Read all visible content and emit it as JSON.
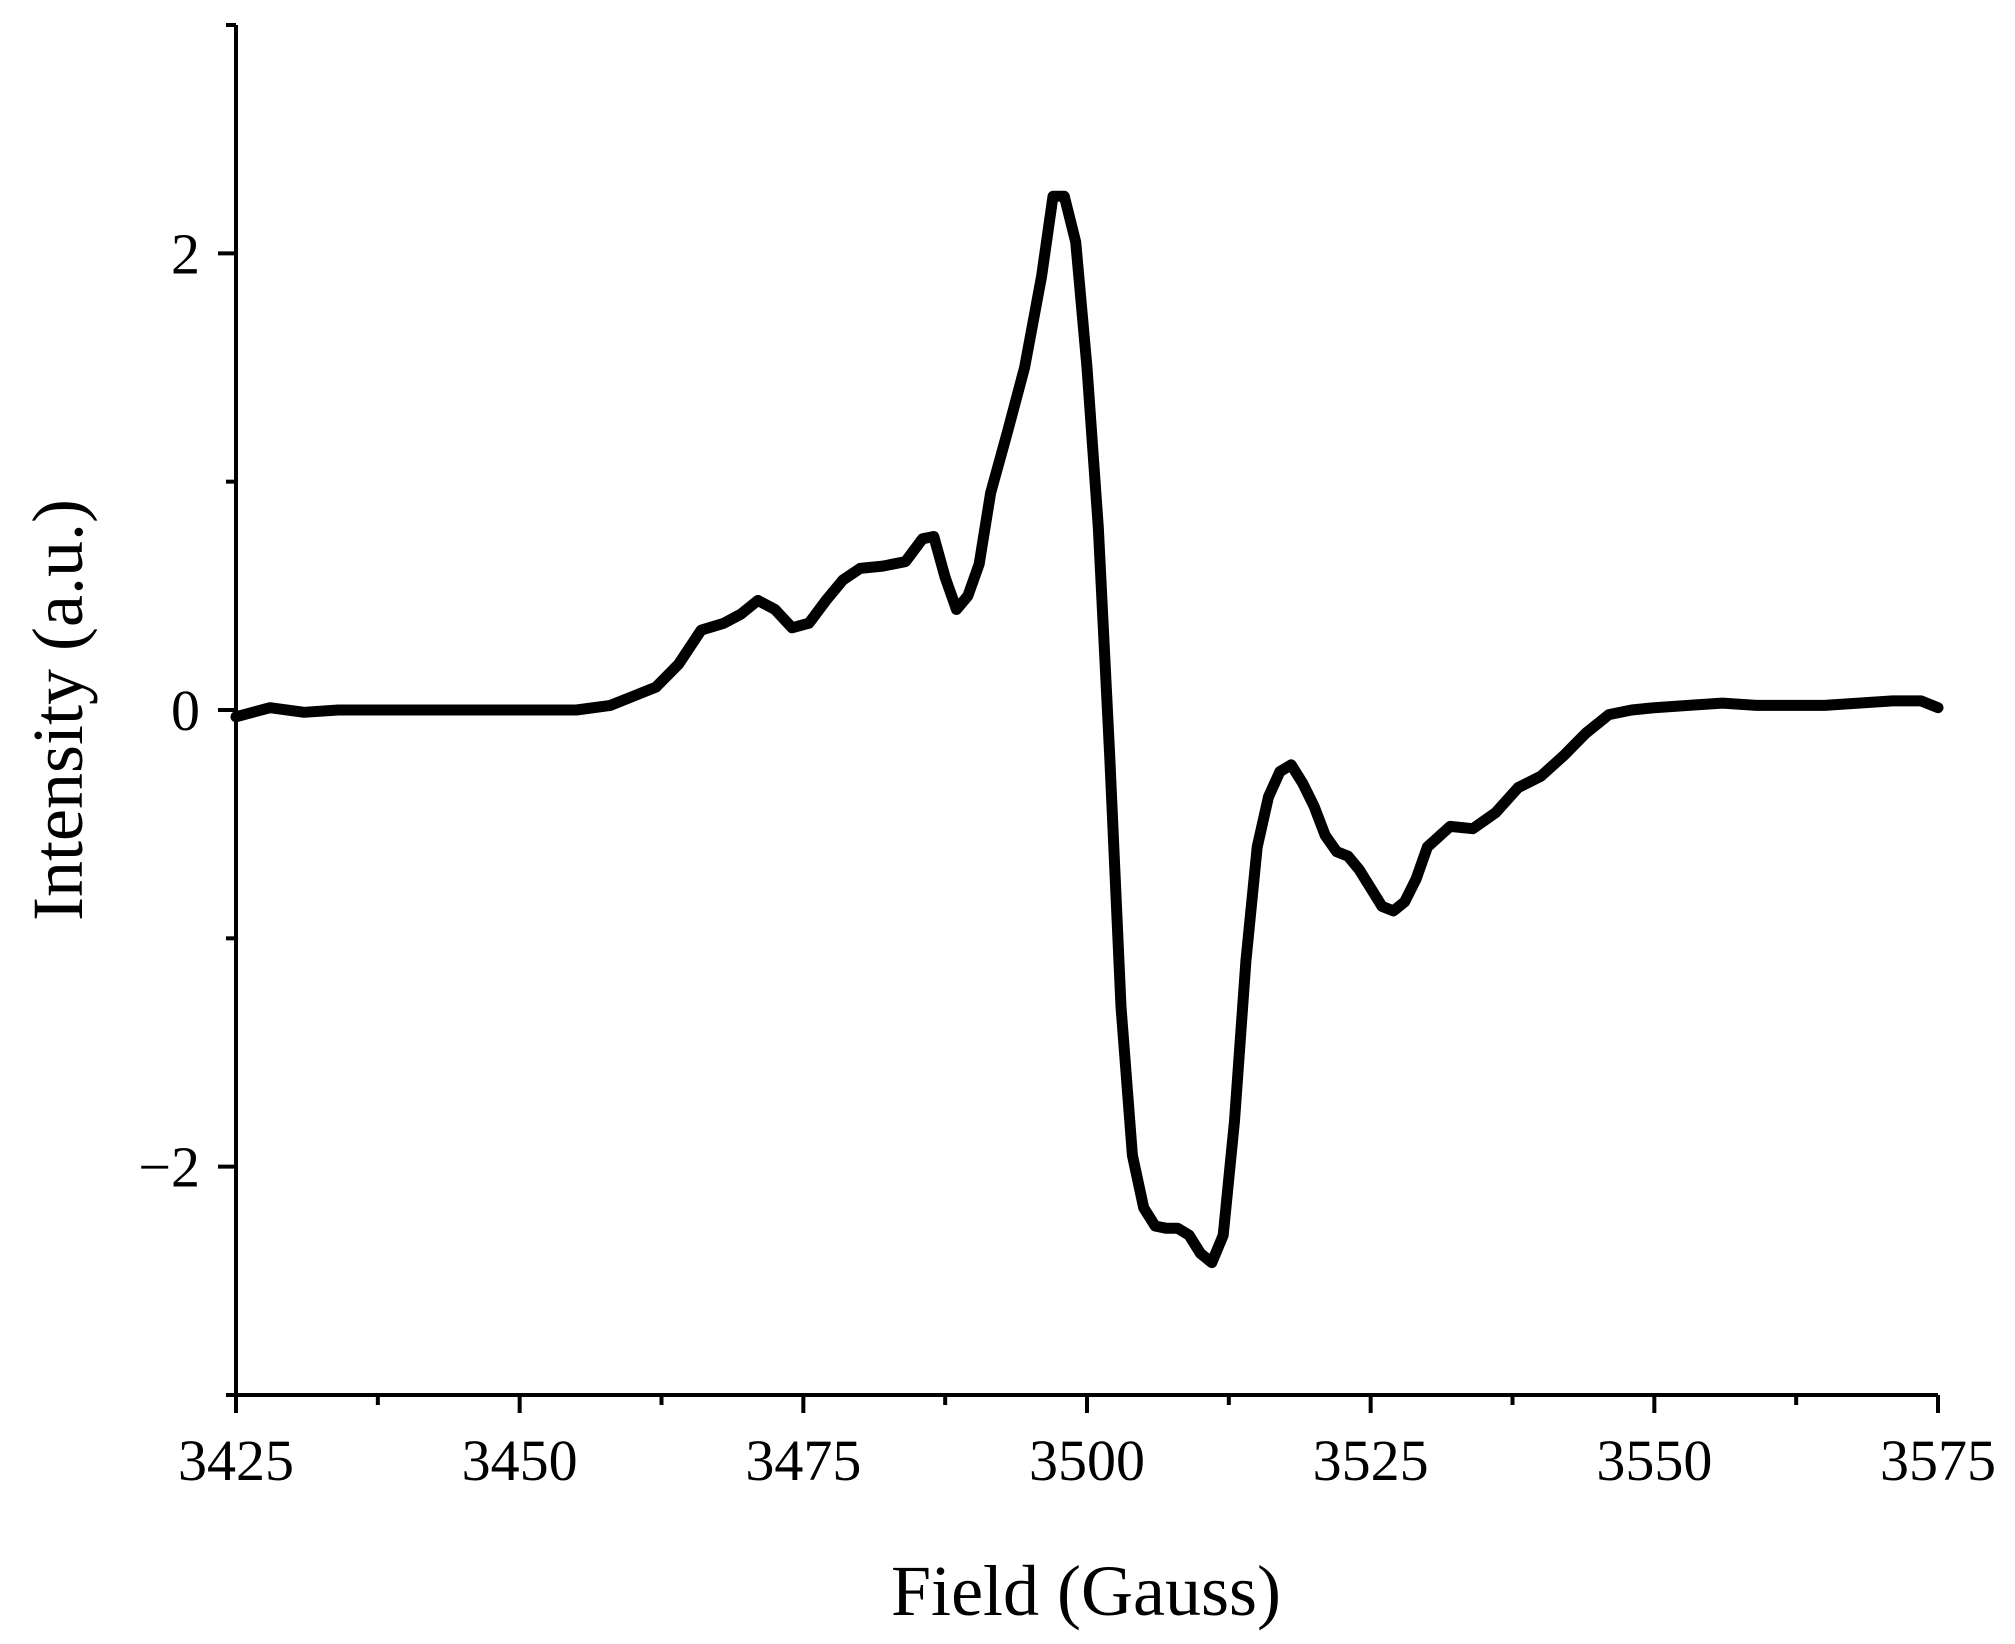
{
  "chart_data": {
    "type": "line",
    "xlabel": "Field (Gauss)",
    "ylabel": "Intensity (a.u.)",
    "xlim": [
      3425,
      3575
    ],
    "ylim": [
      -3,
      3
    ],
    "xticks": [
      3425,
      3450,
      3475,
      3500,
      3525,
      3550,
      3575
    ],
    "xticks_minor": [
      3437.5,
      3462.5,
      3487.5,
      3512.5,
      3537.5,
      3562.5
    ],
    "yticks": [
      -2,
      0,
      2
    ],
    "yticks_minor": [
      -3,
      -1,
      1,
      3
    ],
    "ytick_labels": [
      "−2",
      "0",
      "2"
    ],
    "grid": false,
    "line_color": "#000000",
    "series": [
      {
        "x": [
          3425,
          3428,
          3431,
          3434,
          3437,
          3440,
          3443,
          3446,
          3449,
          3452,
          3455,
          3458,
          3460,
          3462,
          3464,
          3466,
          3468,
          3469.5,
          3471,
          3472.5,
          3474,
          3475.5,
          3477,
          3478.5,
          3480,
          3482,
          3484,
          3485.5,
          3486.5,
          3487.5,
          3488.5,
          3489.5,
          3490.5,
          3491.5,
          3493,
          3494.5,
          3496,
          3497,
          3498,
          3499,
          3500,
          3501,
          3502,
          3503,
          3504,
          3505,
          3506,
          3507,
          3508,
          3509,
          3510,
          3511,
          3512,
          3513,
          3514,
          3515,
          3516,
          3517,
          3518,
          3519,
          3520,
          3521,
          3522,
          3523,
          3524,
          3525,
          3526,
          3527,
          3528,
          3529,
          3530,
          3532,
          3534,
          3536,
          3538,
          3540,
          3542,
          3544,
          3546,
          3548,
          3550,
          3553,
          3556,
          3559,
          3562,
          3565,
          3568,
          3571,
          3573.5,
          3575
        ],
        "y": [
          -0.03,
          0.01,
          -0.01,
          0.0,
          0.0,
          0.0,
          0.0,
          0.0,
          0.0,
          0.0,
          0.0,
          0.02,
          0.06,
          0.1,
          0.2,
          0.35,
          0.38,
          0.42,
          0.48,
          0.44,
          0.36,
          0.38,
          0.48,
          0.57,
          0.62,
          0.63,
          0.65,
          0.75,
          0.76,
          0.58,
          0.44,
          0.5,
          0.64,
          0.95,
          1.22,
          1.5,
          1.9,
          2.25,
          2.25,
          2.05,
          1.5,
          0.8,
          -0.2,
          -1.3,
          -1.95,
          -2.18,
          -2.26,
          -2.27,
          -2.27,
          -2.3,
          -2.38,
          -2.42,
          -2.3,
          -1.8,
          -1.1,
          -0.6,
          -0.38,
          -0.27,
          -0.24,
          -0.32,
          -0.42,
          -0.55,
          -0.62,
          -0.64,
          -0.7,
          -0.78,
          -0.86,
          -0.88,
          -0.84,
          -0.74,
          -0.6,
          -0.51,
          -0.52,
          -0.45,
          -0.34,
          -0.29,
          -0.2,
          -0.1,
          -0.02,
          0.0,
          0.01,
          0.02,
          0.03,
          0.02,
          0.02,
          0.02,
          0.03,
          0.04,
          0.04,
          0.01
        ]
      }
    ]
  }
}
